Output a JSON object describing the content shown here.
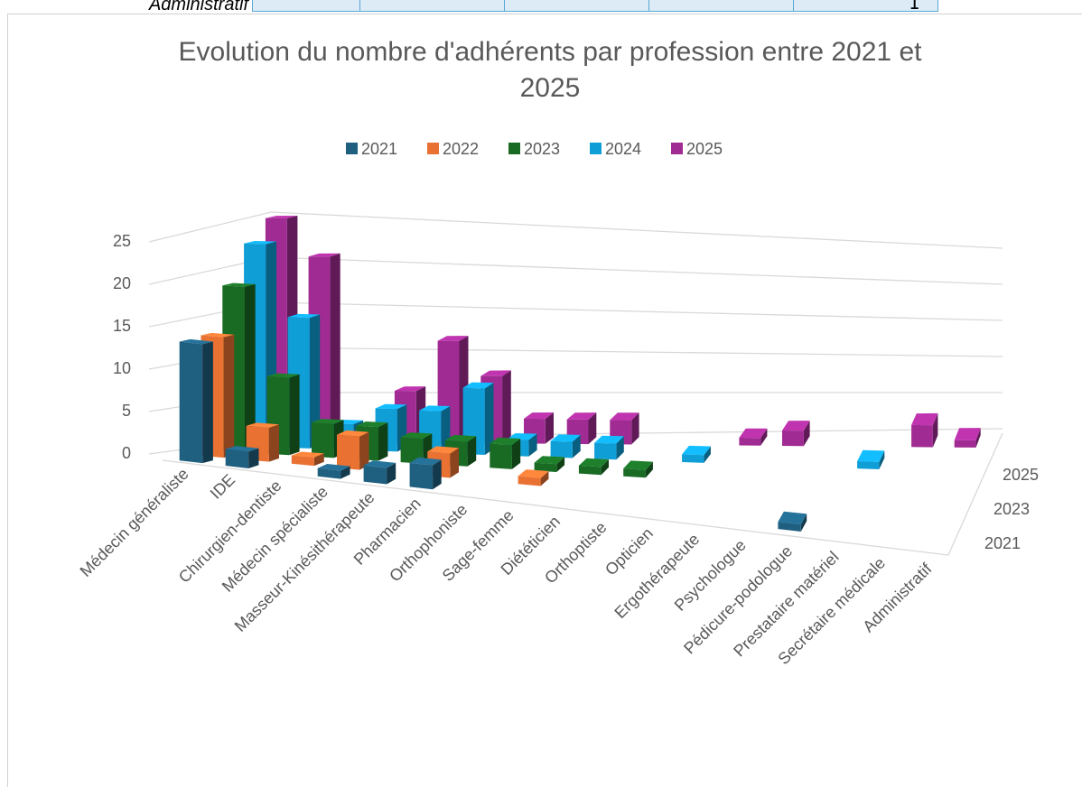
{
  "table_fragment": {
    "row_label": "Administratif",
    "last_value": "1"
  },
  "chart_data": {
    "type": "bar3d",
    "title": "Evolution du nombre d'adhérents par profession entre 2021 et 2025",
    "categories": [
      "Médecin généraliste",
      "IDE",
      "Chirurgien-dentiste",
      "Médecin spécialiste",
      "Masseur-Kinésithérapeute",
      "Pharmacien",
      "Orthophoniste",
      "Sage-femme",
      "Diététicien",
      "Orthoptiste",
      "Opticien",
      "Ergothérapeute",
      "Psychologue",
      "Pédicure-podologue",
      "Prestataire matériel",
      "Secrétaire médicale",
      "Administratif"
    ],
    "series": [
      {
        "name": "2021",
        "color": "#1f5f80",
        "values": [
          14,
          2,
          0,
          1,
          2,
          3,
          0,
          0,
          0,
          0,
          0,
          0,
          0,
          1,
          0,
          0,
          0
        ]
      },
      {
        "name": "2022",
        "color": "#e97132",
        "values": [
          14,
          4,
          1,
          4,
          0,
          3,
          0,
          1,
          0,
          0,
          0,
          0,
          0,
          0,
          0,
          0,
          0
        ]
      },
      {
        "name": "2023",
        "color": "#196b24",
        "values": [
          19,
          9,
          4,
          4,
          3,
          3,
          3,
          1,
          1,
          1,
          0,
          0,
          0,
          0,
          0,
          0,
          0
        ]
      },
      {
        "name": "2024",
        "color": "#0f9ed5",
        "values": [
          23,
          15,
          3,
          5,
          5,
          8,
          2,
          2,
          2,
          0,
          1,
          0,
          0,
          0,
          1,
          0,
          0
        ]
      },
      {
        "name": "2025",
        "color": "#a02b93",
        "values": [
          25,
          21,
          1,
          6,
          12,
          8,
          3,
          3,
          3,
          0,
          0,
          1,
          2,
          0,
          0,
          3,
          1
        ]
      }
    ],
    "ylim": [
      0,
      25
    ],
    "yticks": [
      0,
      5,
      10,
      15,
      20,
      25
    ],
    "grid": true,
    "legend": "top"
  }
}
